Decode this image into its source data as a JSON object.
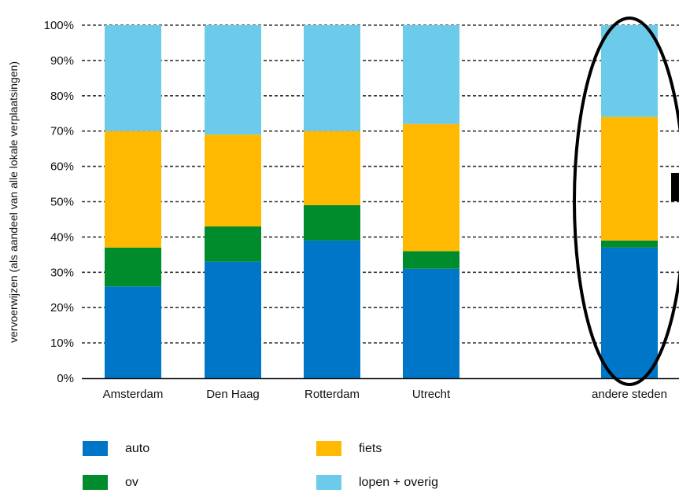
{
  "chart_data": {
    "type": "bar",
    "stacked": true,
    "ylabel": "vervoerwijzen (als aandeel van alle lokale verplaatsingen)",
    "xlabel": "",
    "title": "",
    "ylim": [
      0,
      100
    ],
    "yticks": [
      "0%",
      "10%",
      "20%",
      "30%",
      "40%",
      "50%",
      "60%",
      "70%",
      "80%",
      "90%",
      "100%"
    ],
    "grid": "horizontal-dashed",
    "categories": [
      "Amsterdam",
      "Den Haag",
      "Rotterdam",
      "Utrecht",
      "andere steden"
    ],
    "series": [
      {
        "name": "auto",
        "color": "#0076c8",
        "values": [
          26,
          33,
          39,
          31,
          37
        ]
      },
      {
        "name": "ov",
        "color": "#008c2c",
        "values": [
          11,
          10,
          10,
          5,
          2
        ]
      },
      {
        "name": "fiets",
        "color": "#ffb900",
        "values": [
          33,
          26,
          21,
          36,
          35
        ]
      },
      {
        "name": "lopen + overig",
        "color": "#6ccbea",
        "values": [
          30,
          31,
          30,
          28,
          26
        ]
      }
    ],
    "legend_position": "bottom",
    "highlight": {
      "category": "andere steden",
      "shape": "ellipse-outline"
    }
  }
}
